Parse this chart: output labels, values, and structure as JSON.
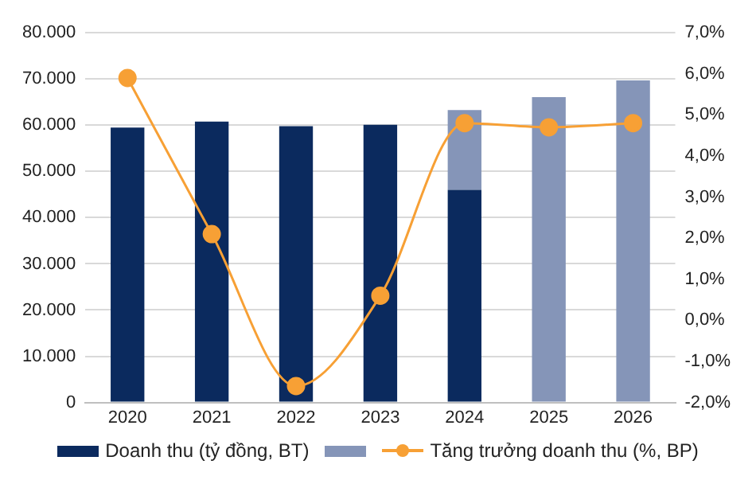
{
  "chart_data": {
    "type": "bar",
    "stacked": true,
    "categories": [
      "2020",
      "2021",
      "2022",
      "2023",
      "2024",
      "2025",
      "2026"
    ],
    "series": [
      {
        "name": "Doanh thu (tỷ đồng, BT)",
        "color": "#0b2a5e",
        "values": [
          59500,
          60800,
          59800,
          60100,
          46000,
          null,
          null
        ]
      },
      {
        "color": "#8595b8",
        "values": [
          null,
          null,
          null,
          null,
          17300,
          66100,
          69700
        ]
      },
      {
        "name": "Tăng trưởng doanh thu (%, BP)",
        "type": "line",
        "axis": "y2",
        "color": "#f7a035",
        "marker": "circle",
        "values": [
          5.9,
          2.1,
          -1.6,
          0.6,
          4.8,
          4.7,
          4.8
        ]
      }
    ],
    "ylim": [
      0,
      80000
    ],
    "yticks": [
      {
        "value": 0,
        "label": "0"
      },
      {
        "value": 10000,
        "label": "10.000"
      },
      {
        "value": 20000,
        "label": "20.000"
      },
      {
        "value": 30000,
        "label": "30.000"
      },
      {
        "value": 40000,
        "label": "40.000"
      },
      {
        "value": 50000,
        "label": "50.000"
      },
      {
        "value": 60000,
        "label": "60.000"
      },
      {
        "value": 70000,
        "label": "70.000"
      },
      {
        "value": 80000,
        "label": "80.000"
      }
    ],
    "y2lim": [
      -2,
      7
    ],
    "y2ticks": [
      {
        "value": -2,
        "label": "-2,0%"
      },
      {
        "value": -1,
        "label": "-1,0%"
      },
      {
        "value": 0,
        "label": "0,0%"
      },
      {
        "value": 1,
        "label": "1,0%"
      },
      {
        "value": 2,
        "label": "2,0%"
      },
      {
        "value": 3,
        "label": "3,0%"
      },
      {
        "value": 4,
        "label": "4,0%"
      },
      {
        "value": 5,
        "label": "5,0%"
      },
      {
        "value": 6,
        "label": "6,0%"
      },
      {
        "value": 7,
        "label": "7,0%"
      }
    ],
    "grid": "y",
    "legend": "bottom"
  }
}
